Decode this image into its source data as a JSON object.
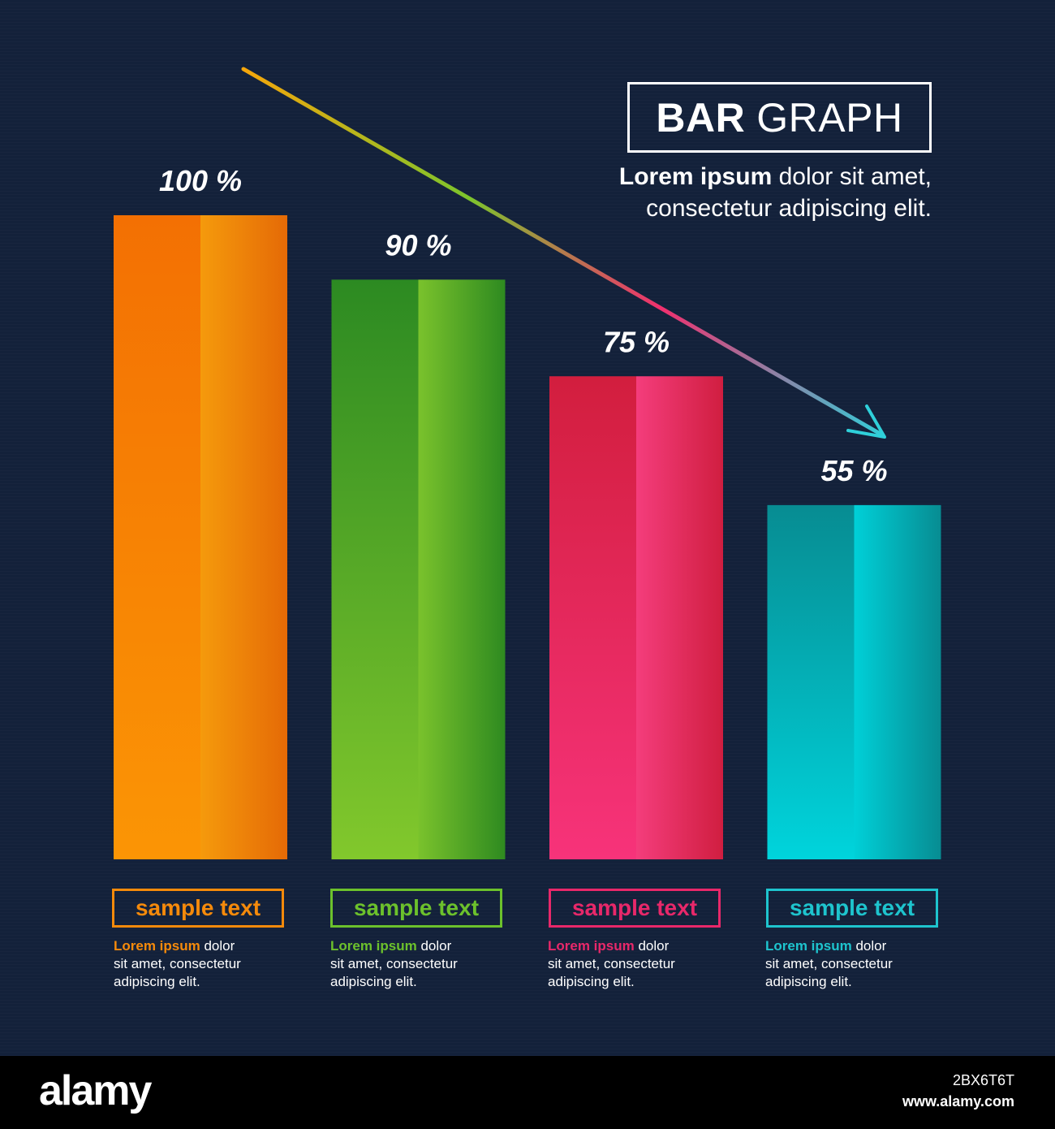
{
  "title": {
    "bold": "BAR",
    "rest": "GRAPH"
  },
  "title_desc": {
    "bold": "Lorem ipsum",
    "rest": " dolor sit amet, consectetur adipiscing elit."
  },
  "chart_data": {
    "type": "bar",
    "categories": [
      "sample text",
      "sample text",
      "sample text",
      "sample text"
    ],
    "values": [
      100,
      90,
      75,
      55
    ],
    "data_labels": [
      "100 %",
      "90 %",
      "75 %",
      "55 %"
    ],
    "ylim": [
      0,
      100
    ],
    "grid": false,
    "colors": [
      "#f58a0b",
      "#5fb52a",
      "#e8285a",
      "#00bfc8"
    ]
  },
  "categories": [
    {
      "label": "sample text",
      "desc_bold": "Lorem ipsum",
      "desc_rest": " dolor",
      "desc_line2": "sit amet, consectetur",
      "desc_line3": "adipiscing elit."
    },
    {
      "label": "sample text",
      "desc_bold": "Lorem ipsum",
      "desc_rest": " dolor",
      "desc_line2": "sit amet, consectetur",
      "desc_line3": "adipiscing elit."
    },
    {
      "label": "sample text",
      "desc_bold": "Lorem ipsum",
      "desc_rest": " dolor",
      "desc_line2": "sit amet, consectetur",
      "desc_line3": "adipiscing elit."
    },
    {
      "label": "sample text",
      "desc_bold": "Lorem ipsum",
      "desc_rest": " dolor",
      "desc_line2": "sit amet, consectetur",
      "desc_line3": "adipiscing elit."
    }
  ],
  "footer": {
    "logo": "alamy",
    "image_id": "2BX6T6T",
    "url": "www.alamy.com"
  }
}
